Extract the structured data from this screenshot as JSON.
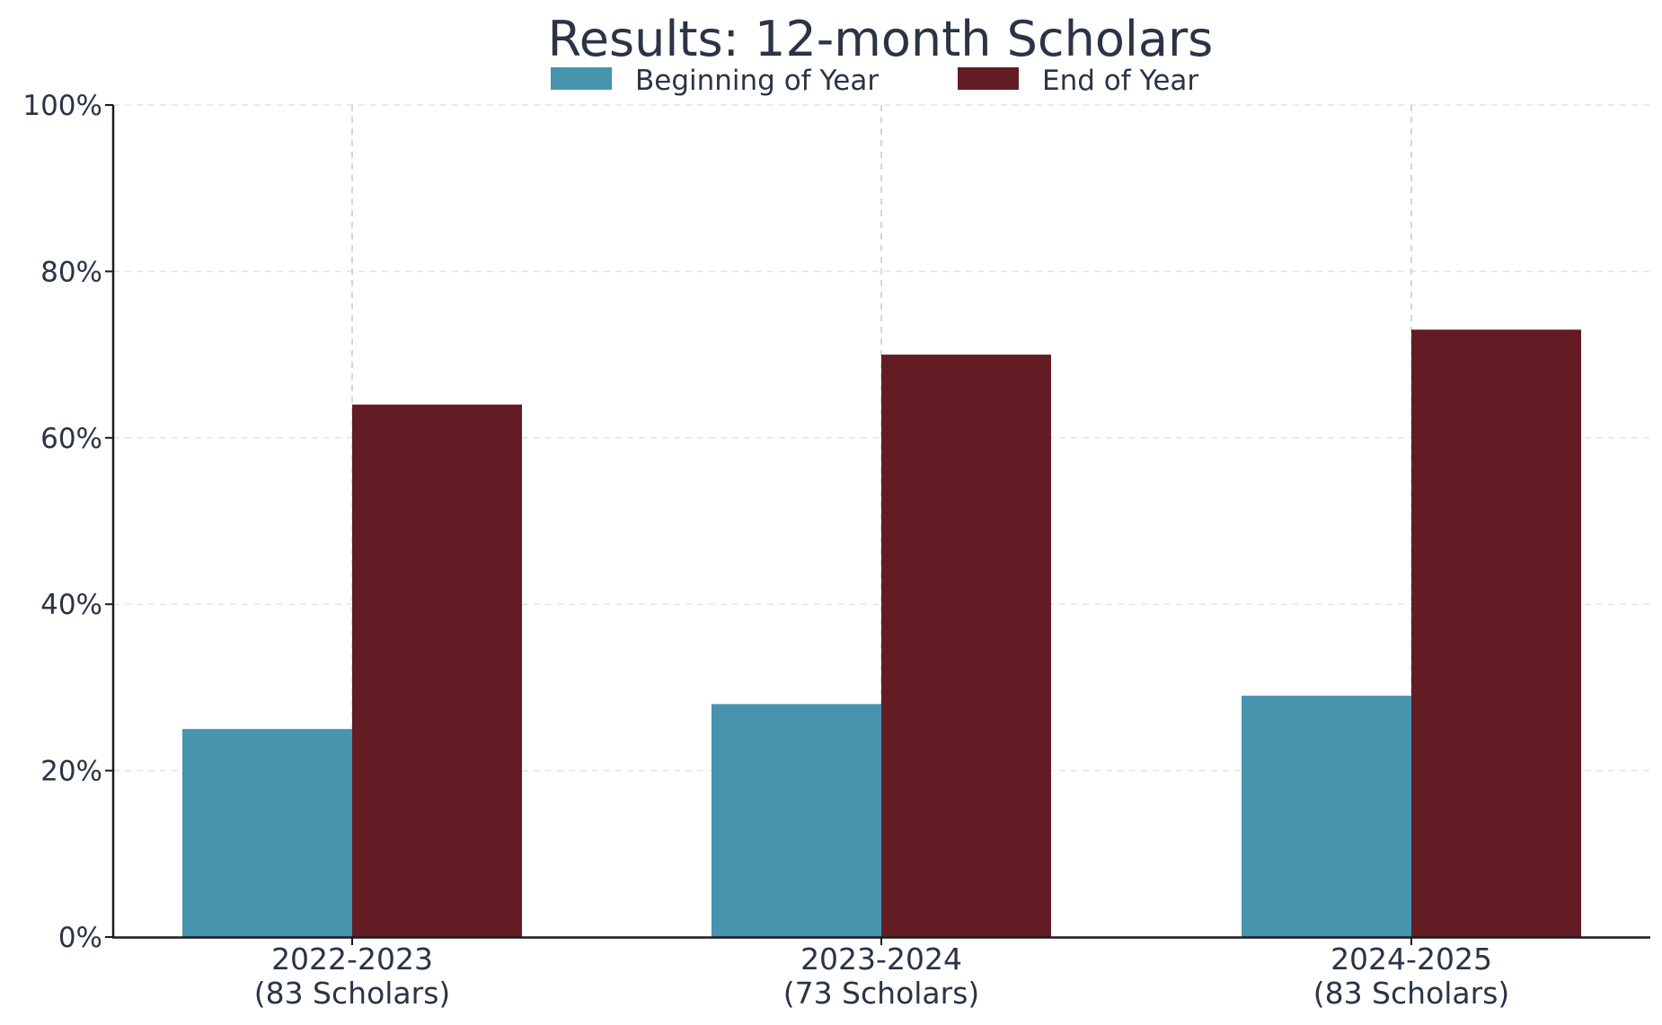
{
  "chart_data": {
    "type": "bar",
    "title": "Results: 12-month Scholars",
    "categories": [
      "2022-2023",
      "2023-2024",
      "2024-2025"
    ],
    "category_sublabels": [
      "(83 Scholars)",
      "(73 Scholars)",
      "(83 Scholars)"
    ],
    "series": [
      {
        "name": "Beginning of Year",
        "color": "#4694ae",
        "values": [
          25,
          28,
          29
        ]
      },
      {
        "name": "End of Year",
        "color": "#631c23",
        "values": [
          64,
          70,
          73
        ]
      }
    ],
    "ylim": [
      0,
      100
    ],
    "yticks": [
      0,
      20,
      40,
      60,
      80,
      100
    ],
    "ytick_labels": [
      "0%",
      "20%",
      "40%",
      "60%",
      "80%",
      "100%"
    ],
    "ytick_format": "percent",
    "grid": true,
    "legend": "top-center",
    "text_color": "#2b3446",
    "grid_color": "#e3e3e3"
  }
}
